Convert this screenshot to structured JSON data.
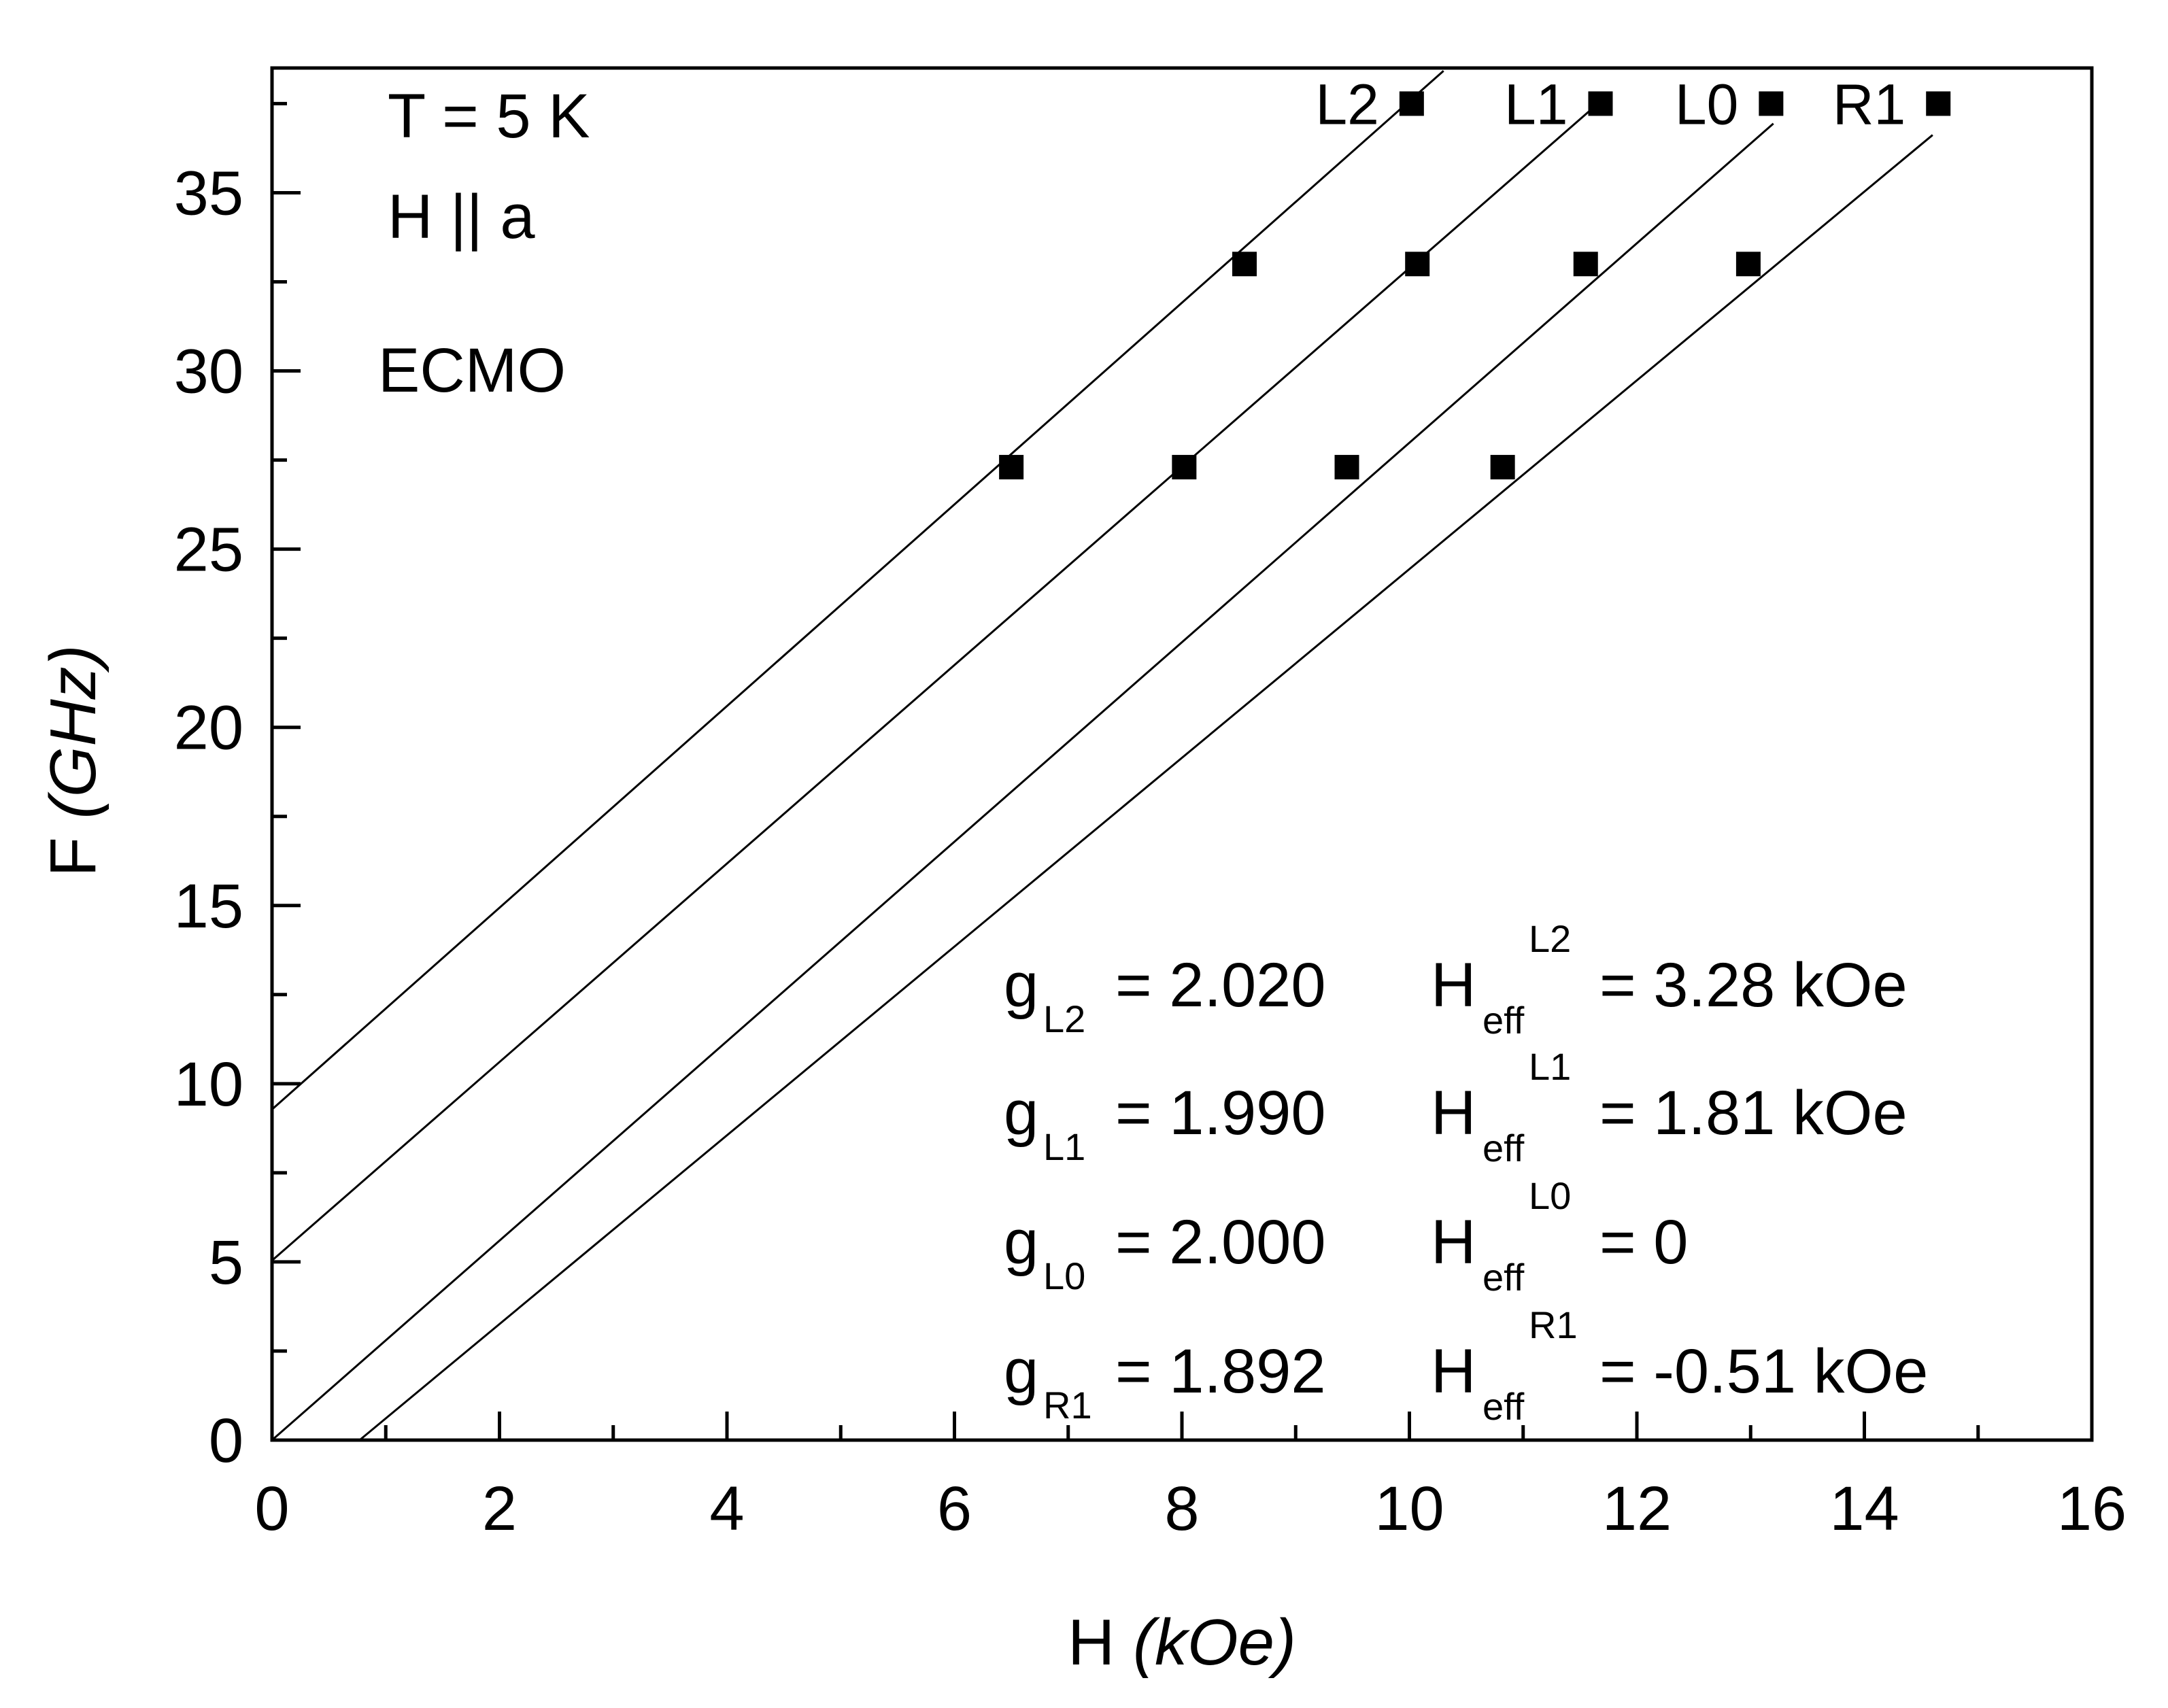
{
  "chart_data": {
    "type": "scatter",
    "xlabel": {
      "main": "H",
      "unit": "(kOe)"
    },
    "ylabel": {
      "main": "F",
      "unit": "(GHz)"
    },
    "xlim": [
      0,
      16
    ],
    "ylim": [
      0,
      38.5
    ],
    "x_major_ticks": [
      0,
      2,
      4,
      6,
      8,
      10,
      12,
      14,
      16
    ],
    "y_major_ticks": [
      0,
      5,
      10,
      15,
      20,
      25,
      30,
      35
    ],
    "x_minor_step": 1,
    "y_minor_step": 2.5,
    "annotations": {
      "temperature": "T = 5 K",
      "field_orientation": "H || a",
      "sample": "ECMO"
    },
    "series": [
      {
        "name": "L2",
        "g": "2.020",
        "heff": "3.28 kOe",
        "fit_x": [
          0,
          10.3
        ],
        "fit_y": [
          9.28,
          38.42
        ],
        "points": [
          {
            "x": 6.5,
            "y": 27.3
          },
          {
            "x": 8.55,
            "y": 33.0
          },
          {
            "x": 10.02,
            "y": 37.5
          }
        ]
      },
      {
        "name": "L1",
        "g": "1.990",
        "heff": "1.81 kOe",
        "fit_x": [
          0,
          11.6
        ],
        "fit_y": [
          5.04,
          37.34
        ],
        "points": [
          {
            "x": 8.02,
            "y": 27.3
          },
          {
            "x": 10.07,
            "y": 33.0
          },
          {
            "x": 11.68,
            "y": 37.5
          }
        ]
      },
      {
        "name": "L0",
        "g": "2.000",
        "heff": "0",
        "fit_x": [
          0,
          13.2
        ],
        "fit_y": [
          0,
          36.94
        ],
        "points": [
          {
            "x": 9.45,
            "y": 27.3
          },
          {
            "x": 11.55,
            "y": 33.0
          },
          {
            "x": 13.18,
            "y": 37.5
          }
        ]
      },
      {
        "name": "R1",
        "g": "1.892",
        "heff": "-0.51 kOe",
        "fit_x": [
          0.77,
          14.6
        ],
        "fit_y": [
          0,
          36.62
        ],
        "points": [
          {
            "x": 10.82,
            "y": 27.3
          },
          {
            "x": 12.98,
            "y": 33.0
          },
          {
            "x": 14.65,
            "y": 37.5
          }
        ]
      }
    ],
    "series_label_text": [
      "L2",
      "L1",
      "L0",
      "R1"
    ],
    "fit_params": [
      {
        "g_sym": "g",
        "g_sub": "L2",
        "g_val": "= 2.020",
        "h_sym": "H",
        "h_sub": "eff",
        "h_sup": "L2",
        "h_val": "= 3.28 kOe"
      },
      {
        "g_sym": "g",
        "g_sub": "L1",
        "g_val": "= 1.990",
        "h_sym": "H",
        "h_sub": "eff",
        "h_sup": "L1",
        "h_val": "= 1.81 kOe"
      },
      {
        "g_sym": "g",
        "g_sub": "L0",
        "g_val": "= 2.000",
        "h_sym": "H",
        "h_sub": "eff",
        "h_sup": "L0",
        "h_val": "= 0"
      },
      {
        "g_sym": "g",
        "g_sub": "R1",
        "g_val": "= 1.892",
        "h_sym": "H",
        "h_sub": "eff",
        "h_sup": "R1",
        "h_val": "= -0.51 kOe"
      }
    ],
    "marker": "square",
    "line_color": "#000000",
    "marker_color": "#000000"
  }
}
